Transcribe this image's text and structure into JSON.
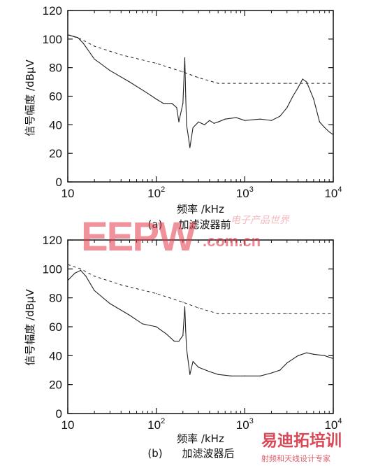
{
  "chart_data": [
    {
      "type": "line",
      "panel": "(a)",
      "caption": "加滤波器前",
      "xlabel": "频率 /kHz",
      "ylabel": "信号幅度 /dBμV",
      "xscale": "log",
      "xlim": [
        10,
        10000
      ],
      "ylim": [
        0,
        120
      ],
      "yticks": [
        0,
        20,
        40,
        60,
        80,
        100,
        120
      ],
      "xticks": [
        {
          "value": 10,
          "base": "10",
          "exp": ""
        },
        {
          "value": 100,
          "base": "10",
          "exp": "2"
        },
        {
          "value": 1000,
          "base": "10",
          "exp": "3"
        },
        {
          "value": 10000,
          "base": "10",
          "exp": "4"
        }
      ],
      "series": [
        {
          "style": "dashed",
          "x": [
            10,
            14,
            20,
            40,
            100,
            200,
            300,
            500,
            1000,
            3000,
            10000
          ],
          "y": [
            103,
            100,
            95,
            89,
            83,
            77,
            73,
            69,
            69,
            69,
            69
          ]
        },
        {
          "style": "solid",
          "x": [
            10,
            13,
            15,
            20,
            30,
            50,
            80,
            100,
            120,
            150,
            170,
            180,
            200,
            210,
            215,
            220,
            230,
            240,
            260,
            280,
            300,
            350,
            400,
            450,
            500,
            600,
            800,
            1000,
            1500,
            2000,
            2500,
            3000,
            3500,
            4000,
            4500,
            5000,
            6000,
            7000,
            8000,
            9000,
            10000
          ],
          "y": [
            103,
            101,
            97,
            86,
            78,
            70,
            62,
            58,
            55,
            55,
            52,
            42,
            55,
            87,
            60,
            40,
            32,
            24,
            38,
            40,
            42,
            40,
            43,
            41,
            42,
            44,
            45,
            43,
            44,
            43,
            46,
            52,
            60,
            66,
            72,
            70,
            58,
            42,
            38,
            35,
            33
          ]
        }
      ]
    },
    {
      "type": "line",
      "panel": "(b)",
      "caption": "加滤波器后",
      "xlabel": "频率 /kHz",
      "ylabel": "信号幅度 /dBμV",
      "xscale": "log",
      "xlim": [
        10,
        10000
      ],
      "ylim": [
        0,
        120
      ],
      "yticks": [
        0,
        20,
        40,
        60,
        80,
        100,
        120
      ],
      "xticks": [
        {
          "value": 10,
          "base": "10",
          "exp": ""
        },
        {
          "value": 100,
          "base": "10",
          "exp": "2"
        },
        {
          "value": 1000,
          "base": "10",
          "exp": "3"
        },
        {
          "value": 10000,
          "base": "10",
          "exp": "4"
        }
      ],
      "series": [
        {
          "style": "dashed",
          "x": [
            10,
            14,
            20,
            40,
            100,
            200,
            300,
            500,
            1000,
            3000,
            10000
          ],
          "y": [
            103,
            100,
            95,
            89,
            83,
            77,
            73,
            69,
            69,
            69,
            69
          ]
        },
        {
          "style": "solid",
          "x": [
            10,
            12,
            14,
            16,
            20,
            30,
            50,
            70,
            100,
            130,
            160,
            180,
            200,
            210,
            215,
            220,
            240,
            260,
            300,
            400,
            500,
            700,
            1000,
            1500,
            2000,
            2500,
            3000,
            4000,
            5000,
            6000,
            8000,
            10000
          ],
          "y": [
            92,
            97,
            99,
            95,
            85,
            76,
            68,
            62,
            60,
            55,
            50,
            50,
            54,
            74,
            57,
            45,
            27,
            36,
            32,
            29,
            27,
            26,
            26,
            26,
            28,
            30,
            35,
            40,
            42,
            41,
            40,
            38
          ]
        }
      ]
    }
  ],
  "watermark1": {
    "big": "EEPW",
    "com": ".com.cn",
    "cn": "电子产品世界"
  },
  "watermark2": {
    "big": "易迪拓培训",
    "sub": "射频和天线设计专家"
  }
}
